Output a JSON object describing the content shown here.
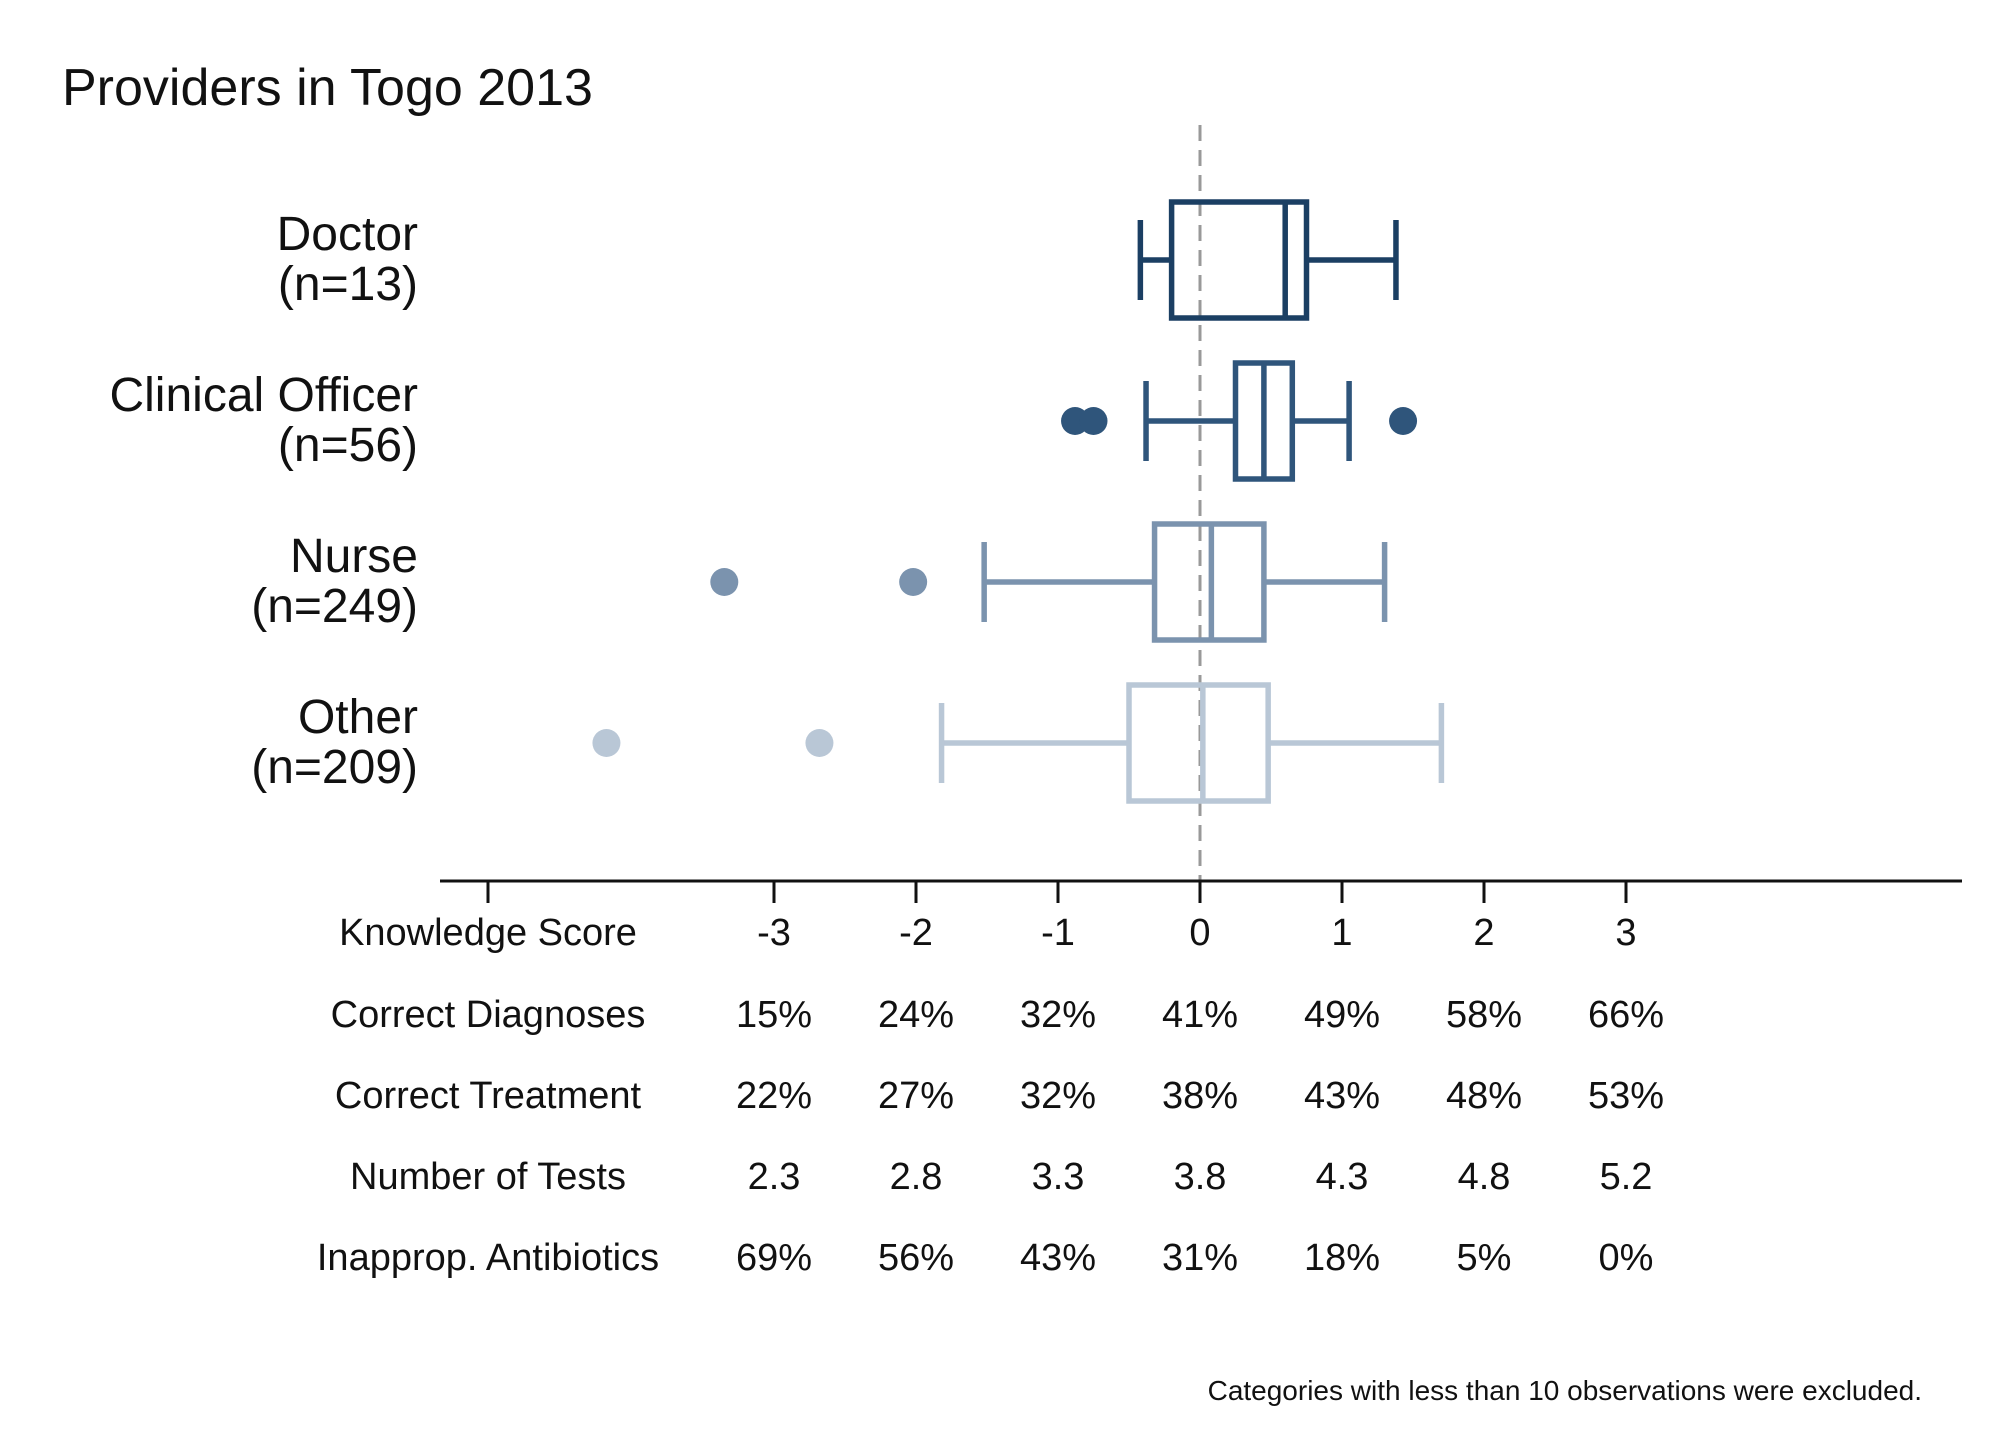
{
  "chart_data": {
    "type": "box",
    "title": "Providers in Togo 2013",
    "note": "Categories with less than 10 observations were excluded.",
    "reference_line": 0,
    "xlim": [
      -5,
      5.3
    ],
    "categories": [
      {
        "name": "Doctor",
        "n_label": "(n=13)",
        "color": "#1b3f63",
        "whisker_low": -0.42,
        "q1": -0.2,
        "median": 0.6,
        "q3": 0.75,
        "whisker_high": 1.38,
        "outliers": []
      },
      {
        "name": "Clinical Officer",
        "n_label": "(n=56)",
        "color": "#2f557b",
        "whisker_low": -0.38,
        "q1": 0.25,
        "median": 0.45,
        "q3": 0.65,
        "whisker_high": 1.05,
        "outliers": [
          -0.88,
          -0.75,
          1.43
        ]
      },
      {
        "name": "Nurse",
        "n_label": "(n=249)",
        "color": "#7b93ae",
        "whisker_low": -1.52,
        "q1": -0.32,
        "median": 0.08,
        "q3": 0.45,
        "whisker_high": 1.3,
        "outliers": [
          -3.35,
          -2.02
        ]
      },
      {
        "name": "Other",
        "n_label": "(n=209)",
        "color": "#b9c7d6",
        "whisker_low": -1.82,
        "q1": -0.5,
        "median": 0.02,
        "q3": 0.48,
        "whisker_high": 1.7,
        "outliers": [
          -4.18,
          -2.68
        ]
      }
    ],
    "x_ticks": [
      -3,
      -2,
      -1,
      0,
      1,
      2,
      3
    ],
    "table_rows": [
      {
        "label": "Knowledge Score",
        "values": [
          "-3",
          "-2",
          "-1",
          "0",
          "1",
          "2",
          "3"
        ]
      },
      {
        "label": "Correct Diagnoses",
        "values": [
          "15%",
          "24%",
          "32%",
          "41%",
          "49%",
          "58%",
          "66%"
        ]
      },
      {
        "label": "Correct Treatment",
        "values": [
          "22%",
          "27%",
          "32%",
          "38%",
          "43%",
          "48%",
          "53%"
        ]
      },
      {
        "label": "Number of Tests",
        "values": [
          "2.3",
          "2.8",
          "3.3",
          "3.8",
          "4.3",
          "4.8",
          "5.2"
        ]
      },
      {
        "label": "Inapprop. Antibiotics",
        "values": [
          "69%",
          "56%",
          "43%",
          "31%",
          "18%",
          "5%",
          "0%"
        ]
      }
    ]
  }
}
